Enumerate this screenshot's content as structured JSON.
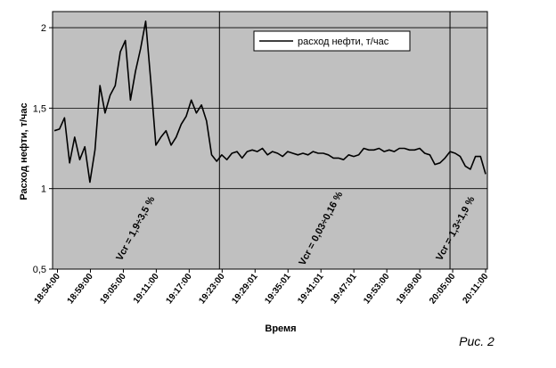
{
  "chart_data": {
    "type": "line",
    "xlabel": "Время",
    "ylabel": "Расход нефти, т/час",
    "ylim": [
      0.5,
      2.1
    ],
    "yticks": [
      "0,5",
      "1",
      "1,5",
      "2"
    ],
    "ytick_values": [
      0.5,
      1,
      1.5,
      2
    ],
    "grid": true,
    "legend_position": "top-right",
    "x_tick_labels": [
      "18:54:00",
      "18:59:00",
      "19:05:00",
      "19:11:00",
      "19:17:00",
      "19:23:00",
      "19:29:01",
      "19:35:01",
      "19:41:01",
      "19:47:01",
      "19:53:00",
      "19:59:00",
      "20:05:00",
      "20:11:00"
    ],
    "series": [
      {
        "name": "расход нефти, т/час",
        "color": "#000000",
        "values": [
          1.36,
          1.37,
          1.44,
          1.16,
          1.32,
          1.18,
          1.26,
          1.04,
          1.24,
          1.64,
          1.47,
          1.58,
          1.64,
          1.85,
          1.92,
          1.55,
          1.73,
          1.87,
          2.04,
          1.67,
          1.27,
          1.32,
          1.36,
          1.27,
          1.32,
          1.4,
          1.45,
          1.55,
          1.47,
          1.52,
          1.42,
          1.21,
          1.17,
          1.21,
          1.18,
          1.22,
          1.23,
          1.19,
          1.23,
          1.24,
          1.23,
          1.25,
          1.21,
          1.23,
          1.22,
          1.2,
          1.23,
          1.22,
          1.21,
          1.22,
          1.21,
          1.23,
          1.22,
          1.22,
          1.21,
          1.19,
          1.19,
          1.18,
          1.21,
          1.2,
          1.21,
          1.25,
          1.24,
          1.24,
          1.25,
          1.23,
          1.24,
          1.23,
          1.25,
          1.25,
          1.24,
          1.24,
          1.25,
          1.22,
          1.21,
          1.15,
          1.16,
          1.19,
          1.23,
          1.22,
          1.2,
          1.14,
          1.12,
          1.2,
          1.2,
          1.09
        ]
      }
    ],
    "dividers_at_tick": [
      5,
      12
    ],
    "annotations": [
      "Vcr = 1,9÷3,5 %",
      "Vcr = 0,03÷0,16 %",
      "Vcr = 1,3÷1,9 %"
    ],
    "figure_label": "Рис. 2"
  }
}
